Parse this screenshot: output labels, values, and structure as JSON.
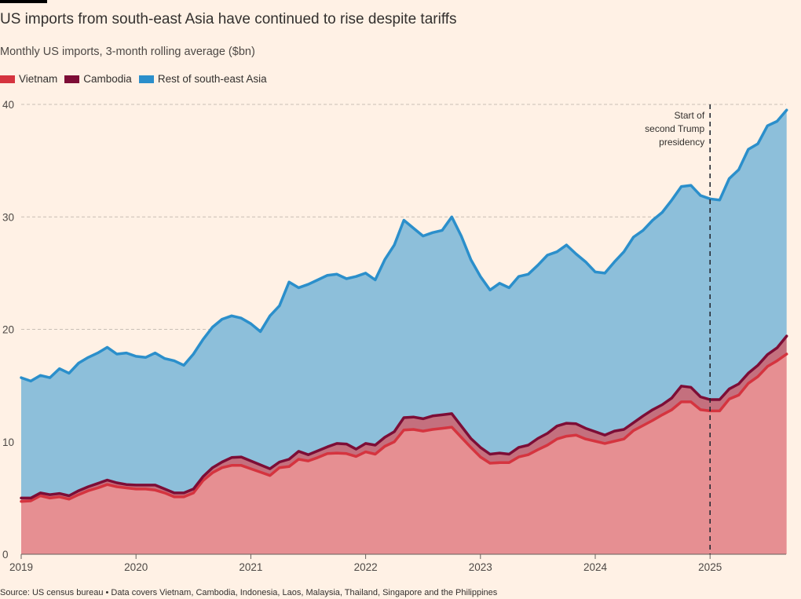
{
  "header": {
    "title": "US imports from south-east Asia have continued to rise despite tariffs",
    "subtitle": "Monthly US imports, 3-month rolling average ($bn)"
  },
  "legend": [
    {
      "label": "Vietnam",
      "color": "#d5343f"
    },
    {
      "label": "Cambodia",
      "color": "#7d0d36"
    },
    {
      "label": "Rest of south-east Asia",
      "color": "#2b8fcb"
    }
  ],
  "source": "Source: US census bureau • Data covers Vietnam, Cambodia, Indonesia, Laos, Malaysia, Thailand, Singapore and the Philippines",
  "annotation": {
    "lines": [
      "Start of",
      "second Trump",
      "presidency"
    ],
    "x": 2025.0
  },
  "chart_data": {
    "type": "area",
    "stacked": true,
    "title": "US imports from south-east Asia have continued to rise despite tariffs",
    "subtitle": "Monthly US imports, 3-month rolling average ($bn)",
    "xlabel": "",
    "ylabel": "",
    "xlim": [
      2019.0,
      2025.667
    ],
    "ylim": [
      0,
      40
    ],
    "yticks": [
      0,
      10,
      20,
      30,
      40
    ],
    "xticks": [
      2019,
      2020,
      2021,
      2022,
      2023,
      2024,
      2025
    ],
    "grid": true,
    "legend_position": "top-left",
    "start_month": "2019-01",
    "series_note": "cumulative values: vietnam, vietnam_plus_cambodia, total",
    "series": [
      {
        "name": "Vietnam",
        "color": "#d5343f",
        "fill": "#e68f92",
        "values": [
          4.7,
          4.75,
          5.2,
          5.0,
          5.1,
          4.9,
          5.3,
          5.65,
          5.9,
          6.2,
          6.0,
          5.9,
          5.8,
          5.8,
          5.7,
          5.45,
          5.1,
          5.1,
          5.45,
          6.55,
          7.25,
          7.7,
          7.9,
          7.9,
          7.6,
          7.3,
          7.0,
          7.7,
          7.8,
          8.45,
          8.3,
          8.6,
          8.95,
          9.0,
          8.95,
          8.7,
          9.1,
          8.9,
          9.6,
          10.0,
          11.05,
          11.1,
          10.95,
          11.1,
          11.2,
          11.3,
          10.4,
          9.5,
          8.65,
          8.1,
          8.15,
          8.15,
          8.65,
          8.85,
          9.3,
          9.7,
          10.25,
          10.5,
          10.6,
          10.25,
          10.05,
          9.85,
          10.05,
          10.25,
          11.0,
          11.45,
          11.9,
          12.4,
          12.85,
          13.55,
          13.55,
          12.85,
          12.75,
          12.75,
          13.8,
          14.15,
          15.2,
          15.8,
          16.7,
          17.2,
          17.8
        ]
      },
      {
        "name": "Cambodia",
        "color": "#7d0d36",
        "fill": "#c4707e",
        "values": [
          5.0,
          5.0,
          5.45,
          5.3,
          5.4,
          5.2,
          5.65,
          6.0,
          6.3,
          6.6,
          6.35,
          6.2,
          6.15,
          6.15,
          6.15,
          5.8,
          5.45,
          5.45,
          5.8,
          6.9,
          7.7,
          8.2,
          8.6,
          8.65,
          8.3,
          7.95,
          7.6,
          8.2,
          8.45,
          9.15,
          8.85,
          9.2,
          9.55,
          9.85,
          9.8,
          9.35,
          9.85,
          9.7,
          10.4,
          10.9,
          12.15,
          12.2,
          12.05,
          12.3,
          12.4,
          12.5,
          11.4,
          10.3,
          9.5,
          8.9,
          9.0,
          8.9,
          9.5,
          9.7,
          10.3,
          10.75,
          11.4,
          11.65,
          11.6,
          11.2,
          10.9,
          10.6,
          10.95,
          11.1,
          11.7,
          12.3,
          12.85,
          13.3,
          13.9,
          14.95,
          14.85,
          14.0,
          13.75,
          13.75,
          14.7,
          15.15,
          16.1,
          16.8,
          17.75,
          18.35,
          19.4
        ]
      },
      {
        "name": "Rest of south-east Asia",
        "color": "#2b8fcb",
        "fill": "#8dbfda",
        "values": [
          15.7,
          15.4,
          15.9,
          15.7,
          16.5,
          16.1,
          17.0,
          17.5,
          17.9,
          18.4,
          17.8,
          17.9,
          17.6,
          17.5,
          17.9,
          17.4,
          17.2,
          16.8,
          17.8,
          19.1,
          20.2,
          20.9,
          21.2,
          21.0,
          20.5,
          19.8,
          21.2,
          22.1,
          24.2,
          23.7,
          24.0,
          24.4,
          24.8,
          24.9,
          24.5,
          24.7,
          25.0,
          24.4,
          26.2,
          27.5,
          29.7,
          29.0,
          28.3,
          28.6,
          28.8,
          30.0,
          28.3,
          26.2,
          24.7,
          23.5,
          24.1,
          23.7,
          24.7,
          24.9,
          25.7,
          26.6,
          26.9,
          27.5,
          26.7,
          26.0,
          25.1,
          25.0,
          26.0,
          26.9,
          28.2,
          28.8,
          29.7,
          30.4,
          31.5,
          32.7,
          32.8,
          31.9,
          31.6,
          31.5,
          33.4,
          34.2,
          36.0,
          36.5,
          38.1,
          38.5,
          39.5
        ]
      }
    ]
  }
}
